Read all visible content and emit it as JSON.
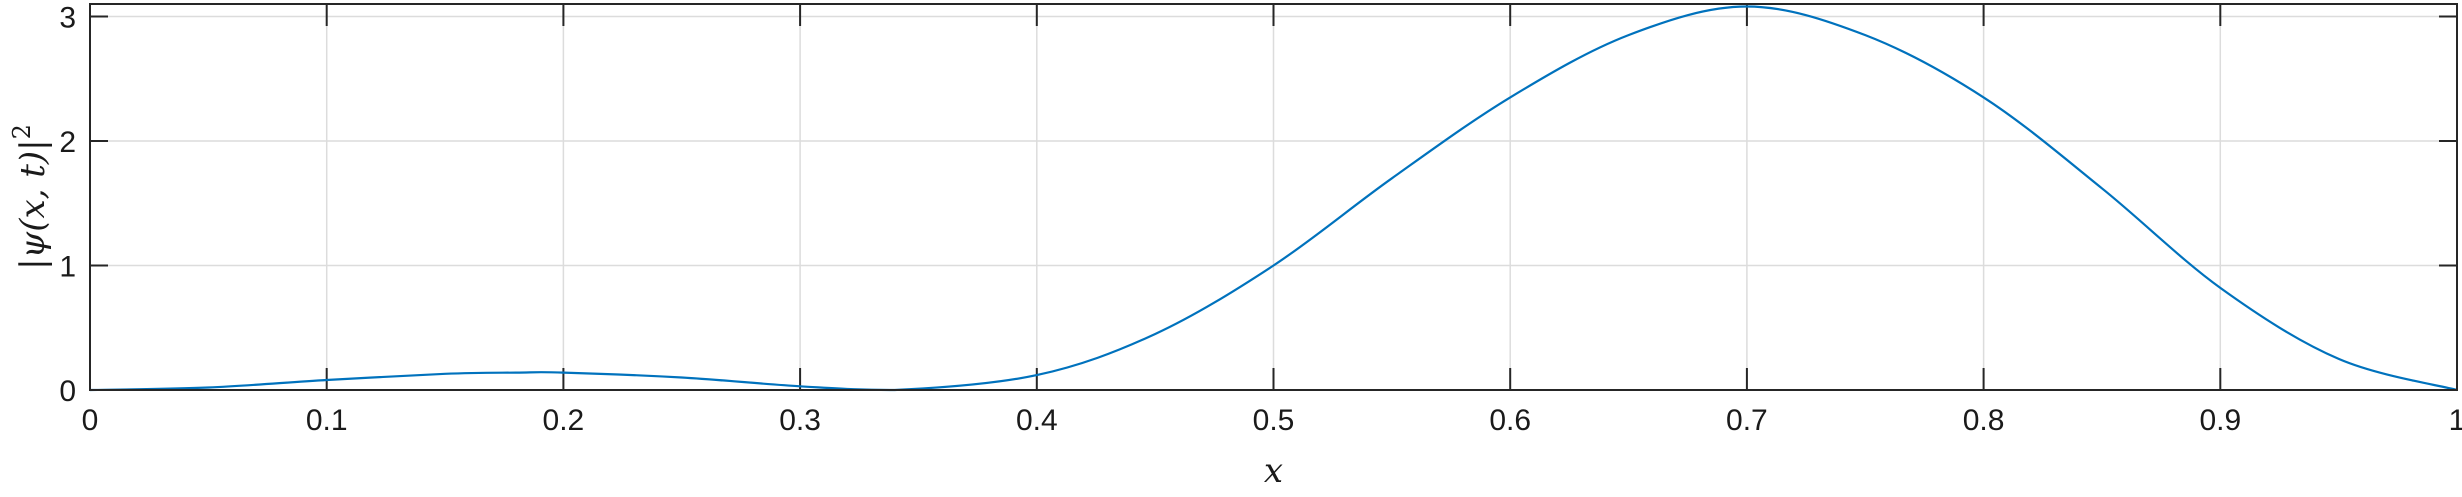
{
  "chart_data": {
    "type": "line",
    "xlabel": "x",
    "ylabel": "|ψ(x, t)|",
    "ylabel_superscript": "2",
    "xlim": [
      0,
      1
    ],
    "ylim": [
      0,
      3.1
    ],
    "grid": true,
    "x_ticks": [
      "0",
      "0.1",
      "0.2",
      "0.3",
      "0.4",
      "0.5",
      "0.6",
      "0.7",
      "0.8",
      "0.9",
      "1"
    ],
    "y_ticks": [
      "0",
      "1",
      "2",
      "3"
    ],
    "line_color": "#0072BD",
    "series": [
      {
        "x": [
          0,
          0.05,
          0.1,
          0.15,
          0.18,
          0.2,
          0.25,
          0.3,
          0.34,
          0.4,
          0.45,
          0.5,
          0.55,
          0.6,
          0.65,
          0.7,
          0.75,
          0.8,
          0.85,
          0.9,
          0.95,
          1.0
        ],
        "values": [
          0,
          0.02,
          0.08,
          0.13,
          0.14,
          0.14,
          0.1,
          0.03,
          0.0,
          0.12,
          0.45,
          1.0,
          1.7,
          2.35,
          2.85,
          3.08,
          2.85,
          2.35,
          1.62,
          0.82,
          0.25,
          0
        ]
      }
    ]
  }
}
